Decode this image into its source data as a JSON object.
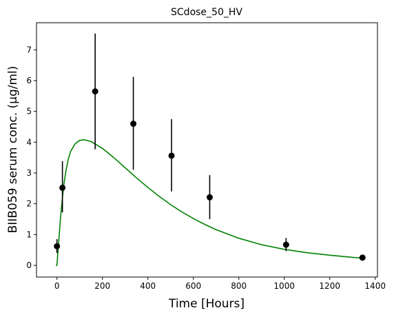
{
  "chart_data": {
    "type": "scatter",
    "title": "SCdose_50_HV",
    "xlabel": "Time [Hours]",
    "ylabel": "BIIB059 serum conc. (µg/ml)",
    "xlim": [
      -90,
      1410
    ],
    "ylim": [
      -0.38,
      7.88
    ],
    "x_ticks": [
      0,
      200,
      400,
      600,
      800,
      1000,
      1200,
      1400
    ],
    "y_ticks": [
      0,
      1,
      2,
      3,
      4,
      5,
      6,
      7
    ],
    "grid": false,
    "observed": {
      "marker_color": "#000000",
      "points": [
        {
          "x": 0,
          "y": 0.62,
          "err_low": 0.4,
          "err_high": 0.85
        },
        {
          "x": 24,
          "y": 2.52,
          "err_low": 1.72,
          "err_high": 3.38
        },
        {
          "x": 168,
          "y": 5.65,
          "err_low": 3.77,
          "err_high": 7.53
        },
        {
          "x": 336,
          "y": 4.6,
          "err_low": 3.1,
          "err_high": 6.12
        },
        {
          "x": 504,
          "y": 3.56,
          "err_low": 2.4,
          "err_high": 4.75
        },
        {
          "x": 672,
          "y": 2.21,
          "err_low": 1.5,
          "err_high": 2.93
        },
        {
          "x": 1008,
          "y": 0.67,
          "err_low": 0.46,
          "err_high": 0.89
        },
        {
          "x": 1344,
          "y": 0.25,
          "err_low": 0.2,
          "err_high": 0.3
        }
      ]
    },
    "model": {
      "color": "#008000",
      "x": [
        -5,
        0,
        5,
        10,
        15,
        20,
        30,
        40,
        50,
        60,
        80,
        100,
        120,
        150,
        200,
        250,
        300,
        350,
        400,
        450,
        500,
        550,
        600,
        650,
        700,
        800,
        900,
        1000,
        1100,
        1200,
        1300,
        1345
      ],
      "y": [
        0.0,
        0.0,
        0.5,
        1.0,
        1.5,
        1.9,
        2.6,
        3.1,
        3.45,
        3.7,
        3.95,
        4.06,
        4.08,
        4.02,
        3.8,
        3.5,
        3.17,
        2.84,
        2.53,
        2.24,
        1.97,
        1.73,
        1.52,
        1.33,
        1.16,
        0.88,
        0.67,
        0.52,
        0.41,
        0.33,
        0.26,
        0.23
      ]
    }
  }
}
